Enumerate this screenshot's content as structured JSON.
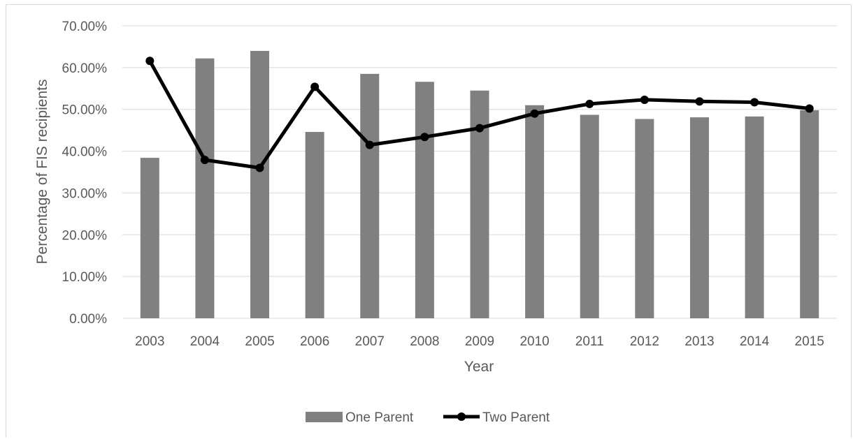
{
  "chart_data": {
    "type": "bar",
    "categories": [
      "2003",
      "2004",
      "2005",
      "2006",
      "2007",
      "2008",
      "2009",
      "2010",
      "2011",
      "2012",
      "2013",
      "2014",
      "2015"
    ],
    "series": [
      {
        "name": "One Parent",
        "type": "bar",
        "color": "#808080",
        "values": [
          38.4,
          62.2,
          64.0,
          44.6,
          58.5,
          56.6,
          54.5,
          51.0,
          48.7,
          47.7,
          48.1,
          48.3,
          49.8
        ]
      },
      {
        "name": "Two Parent",
        "type": "line",
        "color": "#000000",
        "values": [
          61.6,
          37.9,
          36.0,
          55.4,
          41.5,
          43.4,
          45.5,
          49.0,
          51.3,
          52.3,
          51.9,
          51.7,
          50.2
        ]
      }
    ],
    "title": "",
    "xlabel": "Year",
    "ylabel": "Percentage of FIS recipients",
    "ylim": [
      0,
      70
    ],
    "yticks": [
      "0.00%",
      "10.00%",
      "20.00%",
      "30.00%",
      "40.00%",
      "50.00%",
      "60.00%",
      "70.00%"
    ],
    "grid": true,
    "legend_position": "bottom"
  }
}
